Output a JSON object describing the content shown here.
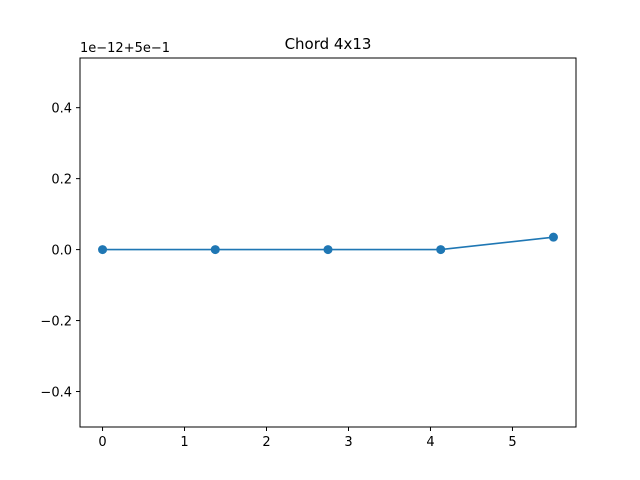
{
  "chart_data": {
    "type": "line",
    "title": "Chord 4x13",
    "xlabel": "",
    "ylabel": "",
    "y_offset_label": "1e−12+5e−1",
    "xlim": [
      -0.275,
      5.775
    ],
    "ylim": [
      -0.5,
      0.54
    ],
    "x_ticks": [
      0,
      1,
      2,
      3,
      4,
      5
    ],
    "x_tick_labels": [
      "0",
      "1",
      "2",
      "3",
      "4",
      "5"
    ],
    "y_ticks": [
      -0.4,
      -0.2,
      0.0,
      0.2,
      0.4
    ],
    "y_tick_labels": [
      "−0.4",
      "−0.2",
      "0.0",
      "0.2",
      "0.4"
    ],
    "grid": false,
    "legend": "none",
    "series": [
      {
        "color": "#1f77b4",
        "marker": "circle",
        "x": [
          0,
          1.375,
          2.75,
          4.125,
          5.5
        ],
        "y": [
          0.0,
          0.0,
          0.0,
          0.0,
          0.035
        ]
      }
    ]
  }
}
